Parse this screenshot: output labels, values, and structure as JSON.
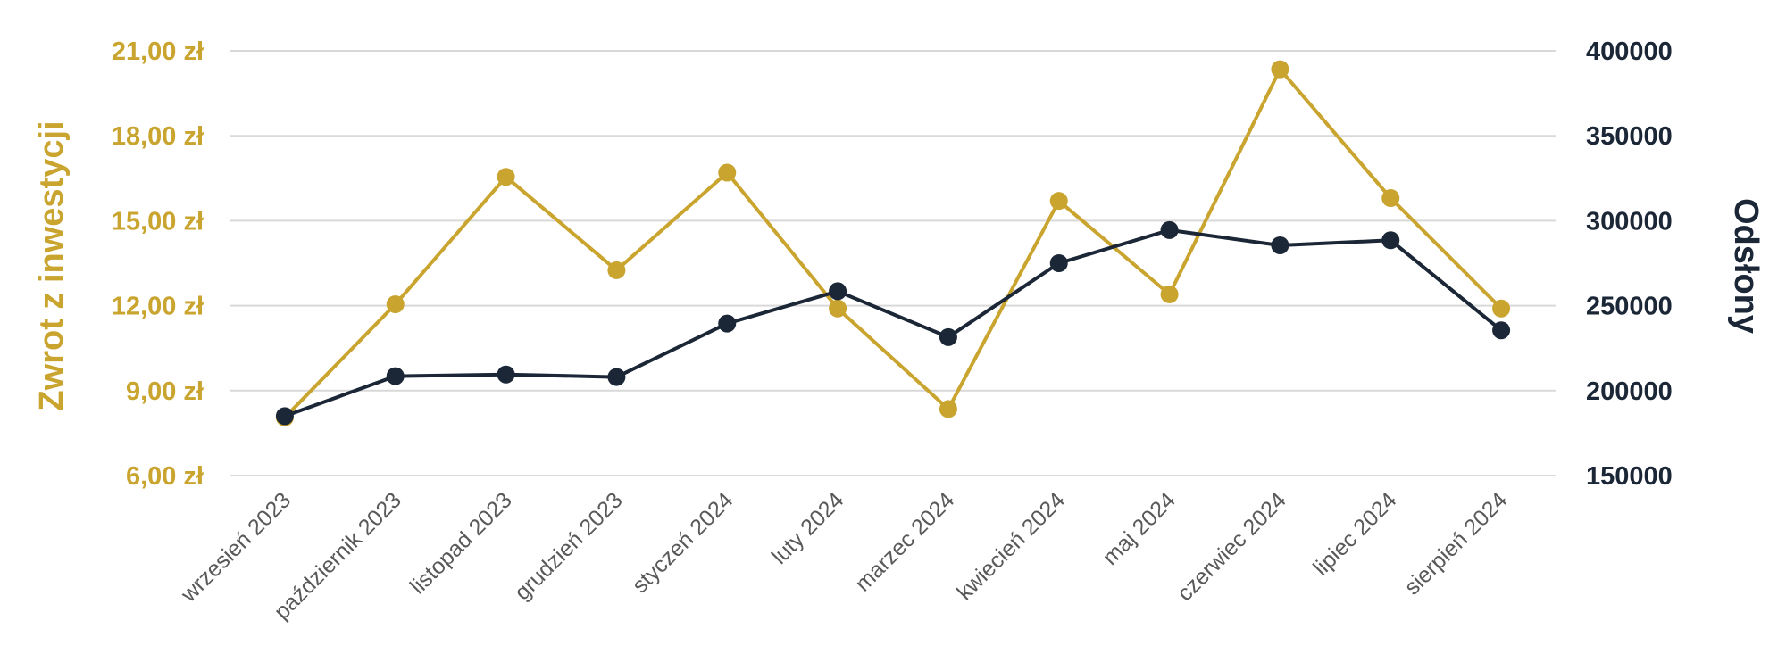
{
  "chart_data": {
    "type": "line",
    "categories": [
      "wrzesień 2023",
      "październik 2023",
      "listopad 2023",
      "grudzień 2023",
      "styczeń 2024",
      "luty 2024",
      "marzec 2024",
      "kwiecień 2024",
      "maj 2024",
      "czerwiec 2024",
      "lipiec 2024",
      "sierpień 2024"
    ],
    "series": [
      {
        "name": "Zwrot z inwestycji",
        "axis": "left",
        "color": "#C9A42E",
        "values": [
          8.05,
          12.05,
          16.55,
          13.25,
          16.7,
          11.9,
          8.35,
          15.7,
          12.4,
          20.35,
          15.8,
          11.9
        ]
      },
      {
        "name": "Odsłony",
        "axis": "right",
        "color": "#1B2736",
        "values": [
          185000,
          208500,
          209500,
          208000,
          239500,
          258500,
          231500,
          275000,
          294500,
          285500,
          288500,
          235500
        ]
      }
    ],
    "left_axis": {
      "label": "Zwrot z inwestycji",
      "ylim": [
        6,
        21
      ],
      "ticks": [
        6,
        9,
        12,
        15,
        18,
        21
      ],
      "tick_labels": [
        "6,00 zł",
        "9,00 zł",
        "12,00 zł",
        "15,00 zł",
        "18,00 zł",
        "21,00 zł"
      ],
      "color": "#C9A42E"
    },
    "right_axis": {
      "label": "Odsłony",
      "ylim": [
        150000,
        400000
      ],
      "ticks": [
        150000,
        200000,
        250000,
        300000,
        350000,
        400000
      ],
      "tick_labels": [
        "150000",
        "200000",
        "250000",
        "300000",
        "350000",
        "400000"
      ],
      "color": "#1B2736"
    },
    "grid": true,
    "grid_color": "#D9D9D9",
    "x_tick_color": "#595959"
  }
}
